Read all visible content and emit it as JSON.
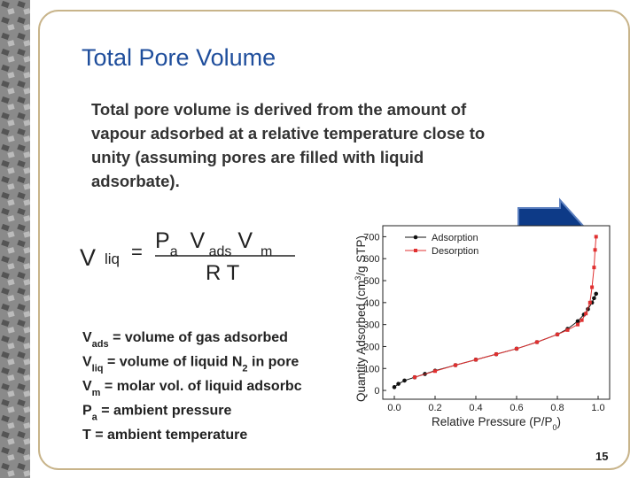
{
  "slide": {
    "title": "Total Pore Volume",
    "paragraph": [
      "Total pore volume is derived from the amount of",
      "vapour adsorbed at a relative temperature close to",
      "unity (assuming pores are filled with liquid",
      "adsorbate)."
    ],
    "formula": {
      "lhs": "V",
      "lhs_sub": "liq",
      "eq": "=",
      "numerator": [
        {
          "t": "P"
        },
        {
          "t": "a",
          "sub": true
        },
        {
          "t": "  V"
        },
        {
          "t": " ads",
          "sub": true
        },
        {
          "t": " V"
        },
        {
          "t": "  m",
          "sub": true
        }
      ],
      "denominator": "R T"
    },
    "definitions": [
      [
        {
          "t": "V"
        },
        {
          "t": "ads",
          "sub": true
        },
        {
          "t": " = volume of gas adsorbed"
        }
      ],
      [
        {
          "t": "V"
        },
        {
          "t": "liq",
          "sub": true
        },
        {
          "t": " = volume of liquid N"
        },
        {
          "t": "2",
          "sub": true
        },
        {
          "t": " in pore"
        }
      ],
      [
        {
          "t": "V"
        },
        {
          "t": "m",
          "sub": true
        },
        {
          "t": " = molar vol. of liquid adsorbc"
        }
      ],
      [
        {
          "t": "P"
        },
        {
          "t": "a",
          "sub": true
        },
        {
          "t": " = ambient pressure"
        }
      ],
      [
        {
          "t": "T = ambient temperature"
        }
      ]
    ],
    "page_number": "15"
  },
  "chart_data": {
    "type": "scatter",
    "x_label": [
      {
        "t": "Relative Pressure (P/P"
      },
      {
        "t": "0",
        "sub": true
      },
      {
        "t": ")"
      }
    ],
    "y_label": [
      {
        "t": "Quantity Adsorbed (cm"
      },
      {
        "t": "3",
        "sup": true
      },
      {
        "t": "/g STP)"
      }
    ],
    "xlim": [
      -0.05,
      1.05
    ],
    "ylim": [
      -40,
      750
    ],
    "xticks": [
      {
        "value": 0,
        "label": "0.0"
      },
      {
        "value": 0.2,
        "label": "0.2"
      },
      {
        "value": 0.4,
        "label": "0.4"
      },
      {
        "value": 0.6,
        "label": "0.6"
      },
      {
        "value": 0.8,
        "label": "0.8"
      },
      {
        "value": 1,
        "label": "1.0"
      }
    ],
    "yticks": [
      0,
      100,
      200,
      300,
      400,
      500,
      600,
      700
    ],
    "legend": "upper left",
    "series": [
      {
        "name": "Adsorption",
        "color": "#111111",
        "marker": "circle",
        "x": [
          0.0,
          0.02,
          0.05,
          0.1,
          0.15,
          0.2,
          0.3,
          0.4,
          0.5,
          0.6,
          0.7,
          0.8,
          0.85,
          0.9,
          0.93,
          0.95,
          0.97,
          0.98,
          0.99
        ],
        "values": [
          15,
          30,
          45,
          60,
          75,
          90,
          115,
          140,
          165,
          190,
          220,
          255,
          280,
          315,
          345,
          370,
          400,
          420,
          440
        ]
      },
      {
        "name": "Desorption",
        "color": "#e03030",
        "marker": "square",
        "x": [
          0.99,
          0.985,
          0.98,
          0.97,
          0.96,
          0.94,
          0.92,
          0.9,
          0.85,
          0.8,
          0.7,
          0.6,
          0.5,
          0.4,
          0.3,
          0.2,
          0.1
        ],
        "values": [
          700,
          640,
          560,
          470,
          400,
          350,
          320,
          300,
          275,
          255,
          220,
          190,
          165,
          140,
          115,
          88,
          60
        ]
      }
    ]
  }
}
